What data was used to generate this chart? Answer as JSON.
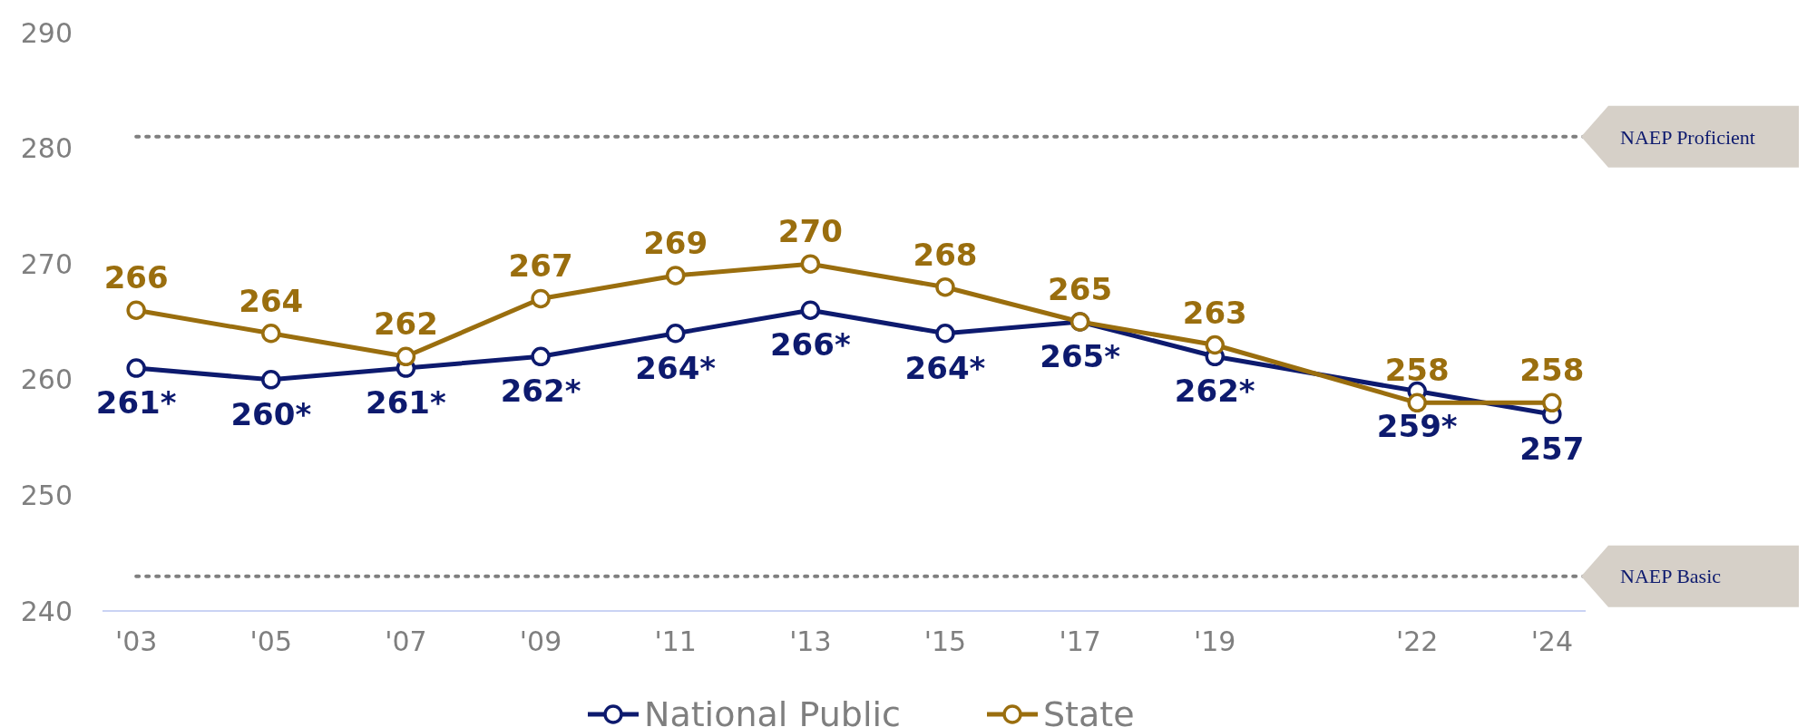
{
  "chart_data": {
    "type": "line",
    "x": [
      2003,
      2005,
      2007,
      2009,
      2011,
      2013,
      2015,
      2017,
      2019,
      2022,
      2024
    ],
    "xlim": [
      2002.5,
      2024.5
    ],
    "xticks": [
      {
        "value": 2003,
        "label": "'03"
      },
      {
        "value": 2005,
        "label": "'05"
      },
      {
        "value": 2007,
        "label": "'07"
      },
      {
        "value": 2009,
        "label": "'09"
      },
      {
        "value": 2011,
        "label": "'11"
      },
      {
        "value": 2013,
        "label": "'13"
      },
      {
        "value": 2015,
        "label": "'15"
      },
      {
        "value": 2017,
        "label": "'17"
      },
      {
        "value": 2019,
        "label": "'19"
      },
      {
        "value": 2022,
        "label": "'22"
      },
      {
        "value": 2024,
        "label": "'24"
      }
    ],
    "ylim": [
      240,
      290
    ],
    "yticks": [
      240,
      250,
      260,
      270,
      280,
      290
    ],
    "series": [
      {
        "name": "National Public",
        "color": "#0d1a6e",
        "values": [
          261,
          260,
          261,
          262,
          264,
          266,
          264,
          265,
          262,
          259,
          257
        ],
        "value_labels": [
          "261*",
          "260*",
          "261*",
          "262*",
          "264*",
          "266*",
          "264*",
          "265*",
          "262*",
          "259*",
          "257"
        ]
      },
      {
        "name": "State",
        "color": "#9a6e0e",
        "values": [
          266,
          264,
          262,
          267,
          269,
          270,
          268,
          265,
          263,
          258,
          258
        ],
        "value_labels": [
          "266",
          "264",
          "262",
          "267",
          "269",
          "270",
          "268",
          "265",
          "263",
          "258",
          "258"
        ]
      }
    ],
    "ref_lines": [
      {
        "axis": "y",
        "value": 281,
        "label": "NAEP Proficient",
        "color": "#7f7f7f",
        "line_style": "dotted"
      },
      {
        "axis": "y",
        "value": 243,
        "label": "NAEP Basic",
        "color": "#7f7f7f",
        "line_style": "dotted"
      }
    ],
    "marker": "circle",
    "line_style": "solid",
    "legend": "bottom",
    "grid": false
  }
}
